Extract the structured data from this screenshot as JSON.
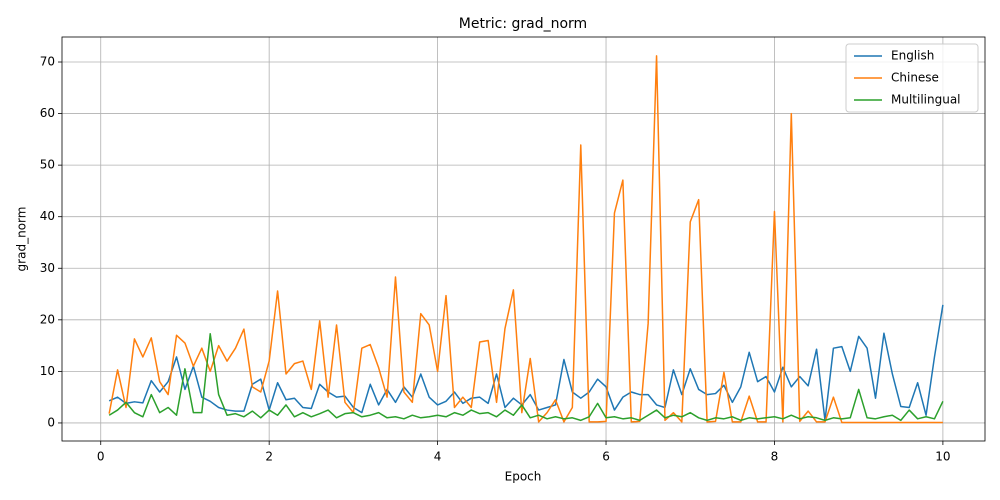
{
  "chart_data": {
    "type": "line",
    "title": "Metric: grad_norm",
    "x_label": "Epoch",
    "y_label": "grad_norm",
    "x": [
      0.1,
      0.2,
      0.3,
      0.4,
      0.5,
      0.6,
      0.7,
      0.8,
      0.9,
      1.0,
      1.1,
      1.2,
      1.3,
      1.4,
      1.5,
      1.6,
      1.7,
      1.8,
      1.9,
      2.0,
      2.1,
      2.2,
      2.3,
      2.4,
      2.5,
      2.6,
      2.7,
      2.8,
      2.9,
      3.0,
      3.1,
      3.2,
      3.3,
      3.4,
      3.5,
      3.6,
      3.7,
      3.8,
      3.9,
      4.0,
      4.1,
      4.2,
      4.3,
      4.4,
      4.5,
      4.6,
      4.7,
      4.8,
      4.9,
      5.0,
      5.1,
      5.2,
      5.3,
      5.4,
      5.5,
      5.6,
      5.7,
      5.8,
      5.9,
      6.0,
      6.1,
      6.2,
      6.3,
      6.4,
      6.5,
      6.6,
      6.7,
      6.8,
      6.9,
      7.0,
      7.1,
      7.2,
      7.3,
      7.4,
      7.5,
      7.6,
      7.7,
      7.8,
      7.9,
      8.0,
      8.1,
      8.2,
      8.3,
      8.4,
      8.5,
      8.6,
      8.7,
      8.8,
      8.9,
      9.0,
      9.1,
      9.2,
      9.3,
      9.4,
      9.5,
      9.6,
      9.7,
      9.8,
      9.9,
      10.0
    ],
    "series": [
      {
        "name": "English",
        "color": "#1f77b4",
        "values": [
          4.3,
          5.0,
          3.8,
          4.1,
          3.9,
          8.2,
          6.0,
          8.0,
          12.8,
          6.5,
          11.0,
          5.0,
          4.2,
          3.0,
          2.5,
          2.3,
          2.3,
          7.5,
          8.5,
          2.5,
          7.8,
          4.5,
          4.8,
          3.0,
          2.8,
          7.5,
          6.0,
          5.0,
          5.2,
          3.0,
          2.0,
          7.5,
          3.5,
          6.5,
          4.0,
          7.0,
          5.0,
          9.5,
          5.0,
          3.5,
          4.2,
          6.0,
          3.8,
          4.8,
          5.0,
          3.8,
          9.5,
          3.0,
          4.8,
          3.5,
          5.5,
          2.5,
          3.0,
          3.5,
          12.3,
          6.0,
          4.8,
          6.0,
          8.5,
          7.0,
          2.5,
          5.0,
          6.0,
          5.5,
          5.5,
          3.5,
          3.0,
          10.3,
          5.5,
          10.5,
          6.5,
          5.5,
          5.7,
          7.3,
          4.0,
          7.0,
          13.7,
          8.0,
          9.0,
          6.0,
          10.8,
          7.0,
          9.0,
          7.2,
          14.3,
          0.5,
          14.5,
          14.8,
          10.0,
          16.8,
          14.5,
          4.8,
          17.4,
          9.5,
          3.2,
          3.0,
          7.8,
          1.5,
          12.8,
          22.9
        ]
      },
      {
        "name": "Chinese",
        "color": "#ff7f0e",
        "values": [
          1.8,
          10.3,
          3,
          16.3,
          12.8,
          16.5,
          8,
          5.5,
          17,
          15.5,
          11,
          14.5,
          10,
          15,
          12,
          14.5,
          18.2,
          7,
          6,
          12,
          25.6,
          9.5,
          11.5,
          12,
          6.5,
          19.8,
          5,
          19,
          4,
          2,
          14.5,
          15.2,
          10.7,
          5,
          28.3,
          6,
          4,
          21.2,
          19,
          10,
          24.7,
          3,
          5,
          3,
          15.7,
          16,
          4,
          18.3,
          25.8,
          2,
          12.5,
          0.2,
          2,
          4.5,
          0.2,
          3,
          53.9,
          0.2,
          0.2,
          0.3,
          40.7,
          47.1,
          0.2,
          0.3,
          19.3,
          71.2,
          0.5,
          2,
          0.2,
          39,
          43.3,
          0.2,
          0.3,
          9.8,
          0.2,
          0.2,
          5.2,
          0.2,
          0.2,
          41,
          0.2,
          60,
          0.3,
          2.3,
          0.2,
          0.2,
          5,
          0.1,
          0.1,
          0.1,
          0.1,
          0.1,
          0.1,
          0.1,
          0.1,
          0.1,
          0.1,
          0.1,
          0.1,
          0.1
        ]
      },
      {
        "name": "Multilingual",
        "color": "#2ca02c",
        "values": [
          1.5,
          2.5,
          4,
          2,
          1.2,
          5.5,
          2,
          3,
          1.5,
          10.5,
          2,
          2,
          17.3,
          5.5,
          1.5,
          1.8,
          1.2,
          2.3,
          1.0,
          2.5,
          1.5,
          3.5,
          1.2,
          2.0,
          1.2,
          1.8,
          2.5,
          1.0,
          1.8,
          2.0,
          1.2,
          1.5,
          2.0,
          1.0,
          1.2,
          0.8,
          1.5,
          1.0,
          1.2,
          1.5,
          1.2,
          2.0,
          1.5,
          2.5,
          1.8,
          2.0,
          1.2,
          2.5,
          1.5,
          3.5,
          1.0,
          1.5,
          0.8,
          1.2,
          0.8,
          1.0,
          0.5,
          1.2,
          3.8,
          1.0,
          1.2,
          0.8,
          1.0,
          0.5,
          1.5,
          2.5,
          1.0,
          1.5,
          1.2,
          2.0,
          1.0,
          0.5,
          1.0,
          0.8,
          1.2,
          0.5,
          1.0,
          0.8,
          1.0,
          1.2,
          0.8,
          1.5,
          0.8,
          1.2,
          1.0,
          0.5,
          1.0,
          0.8,
          1.0,
          6.5,
          1.0,
          0.8,
          1.2,
          1.5,
          0.5,
          2.5,
          0.8,
          1.2,
          0.8,
          4.2
        ]
      }
    ],
    "xlim": [
      -0.46,
      10.5
    ],
    "ylim": [
      -3.5,
      74.85
    ],
    "xticks": [
      0,
      2,
      4,
      6,
      8,
      10
    ],
    "yticks": [
      0,
      10,
      20,
      30,
      40,
      50,
      60,
      70
    ],
    "grid": true,
    "legend": "upper right"
  }
}
